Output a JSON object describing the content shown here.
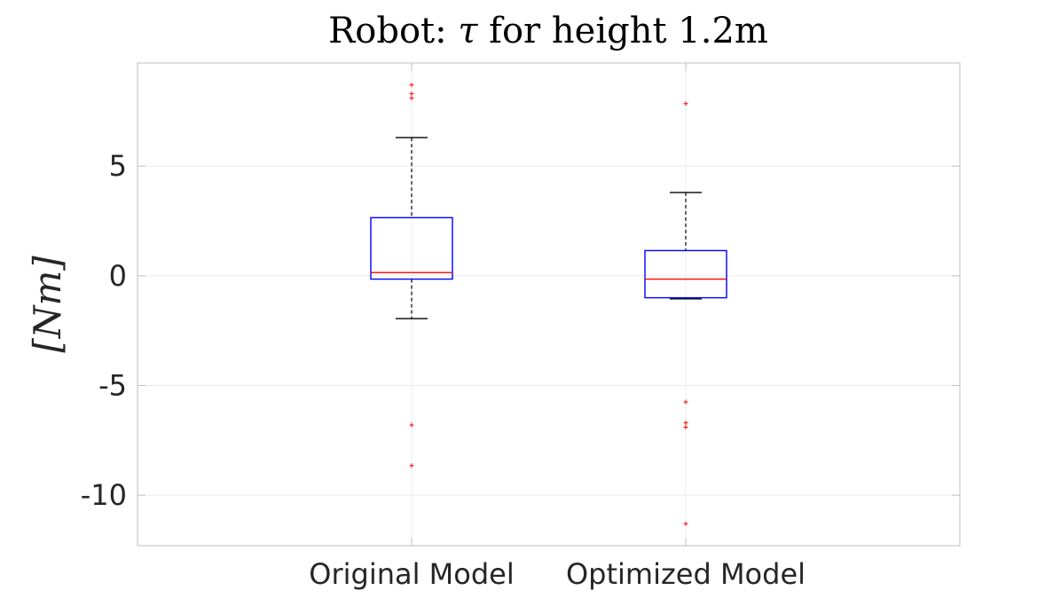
{
  "chart_data": {
    "type": "boxplot",
    "title": {
      "prefix": "Robot:",
      "symbol": "τ",
      "suffix": "for height 1.2m"
    },
    "ylabel": "[Nm]",
    "xlabel": "",
    "ylim": [
      -12.3,
      9.7
    ],
    "yticks": [
      {
        "value": 5,
        "label": "5"
      },
      {
        "value": 0,
        "label": "0"
      },
      {
        "value": -5,
        "label": "-5"
      },
      {
        "value": -10,
        "label": "-10"
      }
    ],
    "grid": true,
    "categories": [
      "Original Model",
      "Optimized Model"
    ],
    "boxes": [
      {
        "name": "Original Model",
        "whisker_low": -1.95,
        "q1": -0.15,
        "median": 0.15,
        "q3": 2.65,
        "whisker_high": 6.3,
        "outliers": [
          8.7,
          8.3,
          8.1,
          -6.8,
          -8.65
        ]
      },
      {
        "name": "Optimized Model",
        "whisker_low": -1.05,
        "q1": -1.0,
        "median": -0.15,
        "q3": 1.15,
        "whisker_high": 3.8,
        "outliers": [
          7.85,
          -5.75,
          -6.7,
          -6.9,
          -11.3
        ]
      }
    ],
    "colors": {
      "box": "#0000ff",
      "median": "#ff0000",
      "whisker": "#000000",
      "outlier": "#ff0000",
      "axes": "#bfbfbf",
      "grid": "#ececec"
    }
  }
}
